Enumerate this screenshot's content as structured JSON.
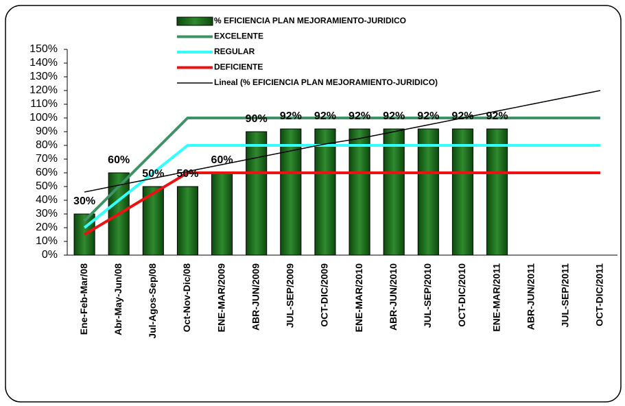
{
  "chart_data": {
    "type": "bar",
    "categories": [
      "Ene-Feb-Mar/08",
      "Abr-May-Jun/08",
      "Jul-Agos-Sep/08",
      "Oct-Nov-Dic/08",
      "ENE-MAR/2009",
      "ABR-JUN/2009",
      "JUL-SEP/2009",
      "OCT-DIC/2009",
      "ENE-MAR/2010",
      "ABR-JUN/2010",
      "JUL-SEP/2010",
      "OCT-DIC/2010",
      "ENE-MAR/2011",
      "ABR-JUN/2011",
      "JUL-SEP/2011",
      "OCT-DIC/2011"
    ],
    "series": [
      {
        "name": "% EFICIENCIA PLAN MEJORAMIENTO-JURIDICO",
        "type": "bar",
        "color": "#1f6e1f",
        "values": [
          30,
          60,
          50,
          50,
          60,
          90,
          92,
          92,
          92,
          92,
          92,
          92,
          92,
          null,
          null,
          null
        ],
        "value_labels": [
          "30%",
          "60%",
          "50%",
          "50%",
          "60%",
          "90%",
          "92%",
          "92%",
          "92%",
          "92%",
          "92%",
          "92%",
          "92%",
          null,
          null,
          null
        ]
      },
      {
        "name": "EXCELENTE",
        "type": "line",
        "color": "#3f9266",
        "values": [
          25,
          50,
          75,
          100,
          100,
          100,
          100,
          100,
          100,
          100,
          100,
          100,
          100,
          100,
          100,
          100
        ]
      },
      {
        "name": "REGULAR",
        "type": "line",
        "color": "#33ffff",
        "values": [
          20,
          40,
          60,
          80,
          80,
          80,
          80,
          80,
          80,
          80,
          80,
          80,
          80,
          80,
          80,
          80
        ]
      },
      {
        "name": "DEFICIENTE",
        "type": "line",
        "color": "#ee1111",
        "values": [
          15,
          30,
          45,
          60,
          60,
          60,
          60,
          60,
          60,
          60,
          60,
          60,
          60,
          60,
          60,
          60
        ]
      },
      {
        "name": "Lineal (% EFICIENCIA PLAN MEJORAMIENTO-JURIDICO)",
        "type": "line",
        "color": "#000000",
        "values": [
          46,
          51,
          56,
          61,
          66,
          71,
          76,
          81,
          85,
          90,
          95,
          100,
          105,
          110,
          115,
          120
        ]
      }
    ],
    "ylim": [
      0,
      150
    ],
    "yticks": [
      {
        "value": 0,
        "label": "0%"
      },
      {
        "value": 10,
        "label": "10%"
      },
      {
        "value": 20,
        "label": "20%"
      },
      {
        "value": 30,
        "label": "30%"
      },
      {
        "value": 40,
        "label": "40%"
      },
      {
        "value": 50,
        "label": "50%"
      },
      {
        "value": 60,
        "label": "60%"
      },
      {
        "value": 70,
        "label": "70%"
      },
      {
        "value": 80,
        "label": "80%"
      },
      {
        "value": 90,
        "label": "90%"
      },
      {
        "value": 100,
        "label": "100%"
      },
      {
        "value": 110,
        "label": "110%"
      },
      {
        "value": 120,
        "label": "120%"
      },
      {
        "value": 130,
        "label": "130%"
      },
      {
        "value": 140,
        "label": "140%"
      },
      {
        "value": 150,
        "label": "150%"
      }
    ],
    "legend": "top"
  }
}
